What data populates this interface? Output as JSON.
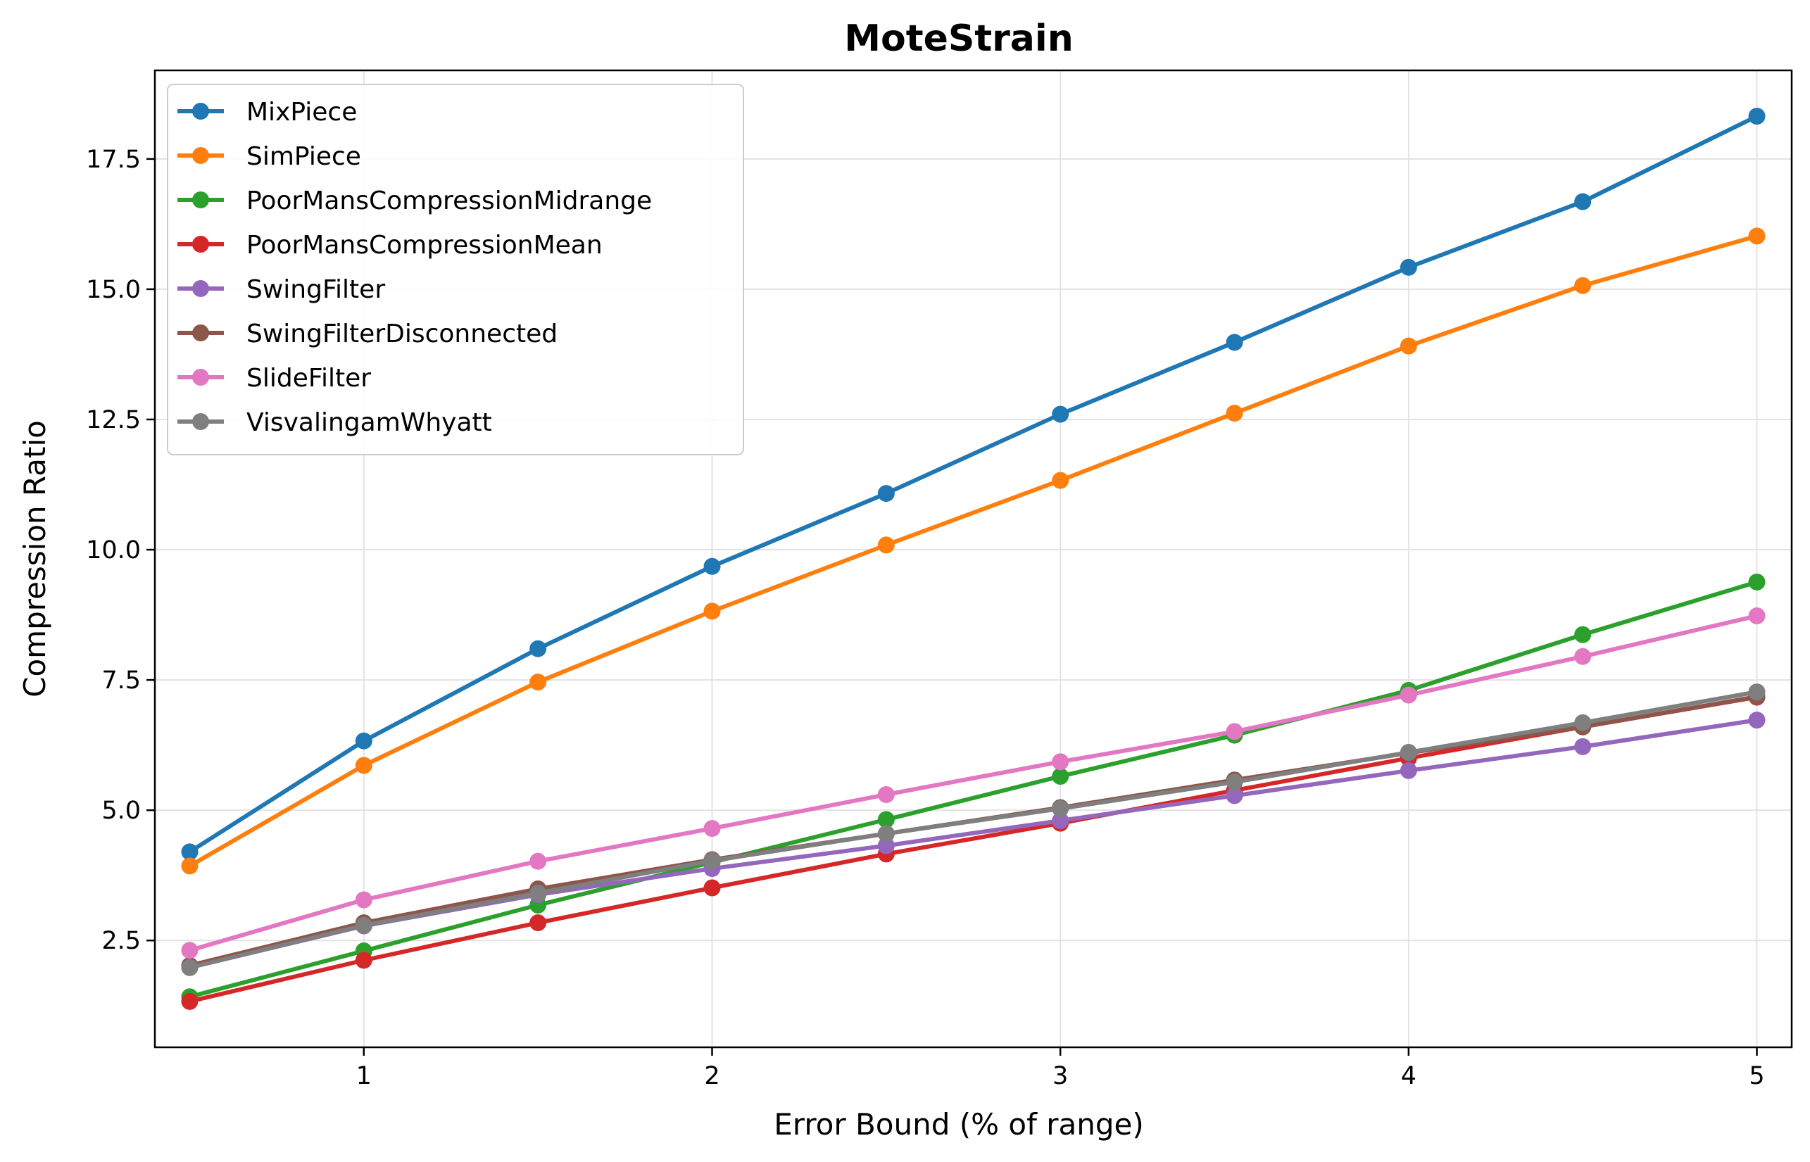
{
  "chart_data": {
    "type": "line",
    "title": "MoteStrain",
    "xlabel": "Error Bound (% of range)",
    "ylabel": "Compression Ratio",
    "xlim": [
      0.4,
      5.1
    ],
    "ylim": [
      0.45,
      19.2
    ],
    "xticks": [
      1,
      2,
      3,
      4,
      5
    ],
    "xtick_labels": [
      "1",
      "2",
      "3",
      "4",
      "5"
    ],
    "yticks": [
      2.5,
      5.0,
      7.5,
      10.0,
      12.5,
      15.0,
      17.5
    ],
    "ytick_labels": [
      "2.5",
      "5.0",
      "7.5",
      "10.0",
      "12.5",
      "15.0",
      "17.5"
    ],
    "grid": true,
    "legend_position": "top-left",
    "x": [
      0.5,
      1.0,
      1.5,
      2.0,
      2.5,
      3.0,
      3.5,
      4.0,
      4.5,
      5.0
    ],
    "series": [
      {
        "name": "MixPiece",
        "color": "#1f77b4",
        "values": [
          4.2,
          6.33,
          8.1,
          9.68,
          11.08,
          12.6,
          13.98,
          15.42,
          16.68,
          18.32
        ]
      },
      {
        "name": "SimPiece",
        "color": "#ff7f0e",
        "values": [
          3.93,
          5.86,
          7.46,
          8.82,
          10.09,
          11.33,
          12.62,
          13.91,
          15.07,
          16.02
        ]
      },
      {
        "name": "PoorMansCompressionMidrange",
        "color": "#2ca02c",
        "values": [
          1.42,
          2.3,
          3.18,
          4.0,
          4.82,
          5.65,
          6.44,
          7.3,
          8.37,
          9.38
        ]
      },
      {
        "name": "PoorMansCompressionMean",
        "color": "#d62728",
        "values": [
          1.33,
          2.12,
          2.84,
          3.51,
          4.16,
          4.75,
          5.38,
          6.0,
          6.6,
          7.17
        ]
      },
      {
        "name": "SwingFilter",
        "color": "#9467bd",
        "values": [
          1.98,
          2.78,
          3.38,
          3.88,
          4.32,
          4.8,
          5.28,
          5.76,
          6.22,
          6.73
        ]
      },
      {
        "name": "SwingFilterDisconnected",
        "color": "#8c564b",
        "values": [
          2.02,
          2.84,
          3.49,
          4.05,
          4.55,
          5.05,
          5.58,
          6.1,
          6.6,
          7.18
        ]
      },
      {
        "name": "SlideFilter",
        "color": "#e377c2",
        "values": [
          2.31,
          3.28,
          4.02,
          4.65,
          5.3,
          5.93,
          6.51,
          7.21,
          7.95,
          8.73
        ]
      },
      {
        "name": "VisvalingamWhyatt",
        "color": "#7f7f7f",
        "values": [
          1.98,
          2.79,
          3.41,
          4.03,
          4.55,
          5.03,
          5.54,
          6.11,
          6.68,
          7.27
        ]
      }
    ]
  }
}
